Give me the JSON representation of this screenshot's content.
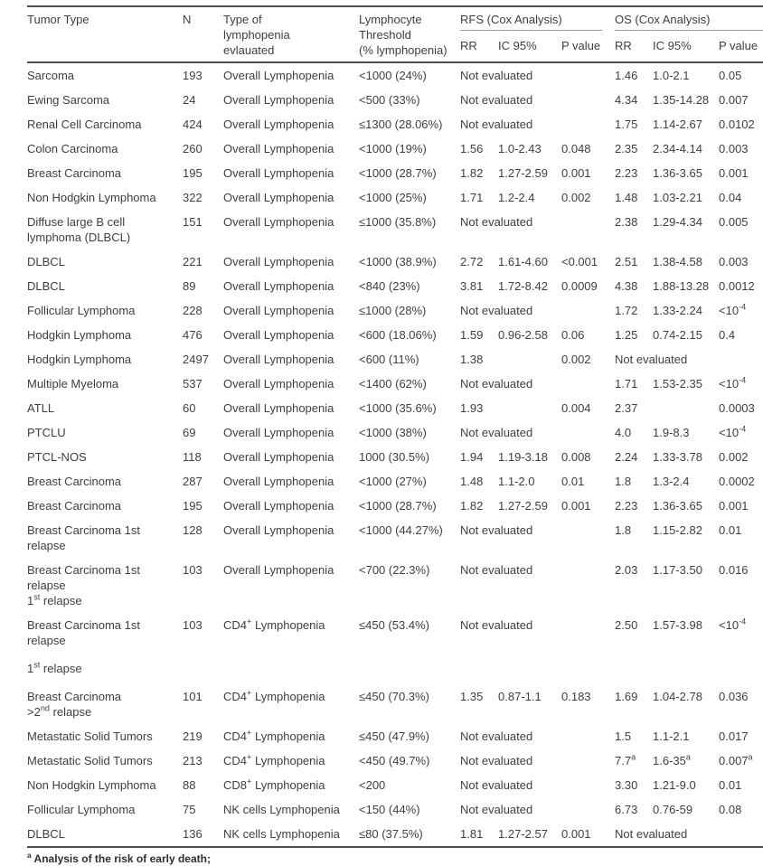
{
  "table": {
    "header": {
      "tumor_type": "Tumor Type",
      "n": "N",
      "type_of_lymphopenia": "Type of\nlymphopenia\nevlauated",
      "threshold": "Lymphocyte\nThreshold\n(% lymphopenia)",
      "rfs_group": "RFS (Cox Analysis)",
      "os_group": "OS (Cox Analysis)",
      "rr": "RR",
      "ic95": "IC 95%",
      "p_value": "P value"
    },
    "rows": [
      {
        "tumor": "Sarcoma",
        "n": "193",
        "type": "Overall Lymphopenia",
        "threshold": "<1000 (24%)",
        "rfs": "Not evaluated",
        "os": [
          "1.46",
          "1.0-2.1",
          "0.05"
        ]
      },
      {
        "tumor": "Ewing Sarcoma",
        "n": "24",
        "type": "Overall Lymphopenia",
        "threshold": "<500 (33%)",
        "rfs": "Not evaluated",
        "os": [
          "4.34",
          "1.35-14.28",
          "0.007"
        ]
      },
      {
        "tumor": "Renal Cell Carcinoma",
        "n": "424",
        "type": "Overall Lymphopenia",
        "threshold": "≤1300 (28.06%)",
        "rfs": "Not evaluated",
        "os": [
          "1.75",
          "1.14-2.67",
          "0.0102"
        ]
      },
      {
        "tumor": "Colon Carcinoma",
        "n": "260",
        "type": "Overall Lymphopenia",
        "threshold": "<1000 (19%)",
        "rfs": [
          "1.56",
          "1.0-2.43",
          "0.048"
        ],
        "os": [
          "2.35",
          "2.34-4.14",
          "0.003"
        ]
      },
      {
        "tumor": "Breast Carcinoma",
        "n": "195",
        "type": "Overall Lymphopenia",
        "threshold": "<1000 (28.7%)",
        "rfs": [
          "1.82",
          "1.27-2.59",
          "0.001"
        ],
        "os": [
          "2.23",
          "1.36-3.65",
          "0.001"
        ]
      },
      {
        "tumor": "Non Hodgkin Lymphoma",
        "n": "322",
        "type": "Overall Lymphopenia",
        "threshold": "<1000 (25%)",
        "rfs": [
          "1.71",
          "1.2-2.4",
          "0.002"
        ],
        "os": [
          "1.48",
          "1.03-2.21",
          "0.04"
        ]
      },
      {
        "tumor": "Diffuse large B cell\nlymphoma (DLBCL)",
        "n": "151",
        "type": "Overall Lymphopenia",
        "threshold": "≤1000 (35.8%)",
        "rfs": "Not evaluated",
        "os": [
          "2.38",
          "1.29-4.34",
          "0.005"
        ]
      },
      {
        "tumor": "DLBCL",
        "n": "221",
        "type": "Overall Lymphopenia",
        "threshold": "<1000 (38.9%)",
        "rfs": [
          "2.72",
          "1.61-4.60",
          "<0.001"
        ],
        "os": [
          "2.51",
          "1.38-4.58",
          "0.003"
        ]
      },
      {
        "tumor": "DLBCL",
        "n": "89",
        "type": "Overall Lymphopenia",
        "threshold": "<840 (23%)",
        "rfs": [
          "3.81",
          "1.72-8.42",
          "0.0009"
        ],
        "os": [
          "4.38",
          "1.88-13.28",
          "0.0012"
        ]
      },
      {
        "tumor": "Follicular Lymphoma",
        "n": "228",
        "type": "Overall Lymphopenia",
        "threshold": "≤1000 (28%)",
        "rfs": "Not evaluated",
        "os": [
          "1.72",
          "1.33-2.24",
          "<10^{-4}"
        ]
      },
      {
        "tumor": "Hodgkin Lymphoma",
        "n": "476",
        "type": "Overall Lymphopenia",
        "threshold": "<600 (18.06%)",
        "rfs": [
          "1.59",
          "0.96-2.58",
          "0.06"
        ],
        "os": [
          "1.25",
          "0.74-2.15",
          "0.4"
        ]
      },
      {
        "tumor": "Hodgkin Lymphoma",
        "n": "2497",
        "type": "Overall Lymphopenia",
        "threshold": "<600 (11%)",
        "rfs": [
          "1.38",
          "",
          "0.002"
        ],
        "os": "Not evaluated"
      },
      {
        "tumor": "Multiple Myeloma",
        "n": "537",
        "type": "Overall Lymphopenia",
        "threshold": "<1400 (62%)",
        "rfs": "Not evaluated",
        "os": [
          "1.71",
          "1.53-2.35",
          "<10^{-4}"
        ]
      },
      {
        "tumor": "ATLL",
        "n": "60",
        "type": "Overall Lymphopenia",
        "threshold": "<1000 (35.6%)",
        "rfs": [
          "1.93",
          "",
          "0.004"
        ],
        "os": [
          "2.37",
          "",
          "0.0003"
        ]
      },
      {
        "tumor": "PTCLU",
        "n": "69",
        "type": "Overall Lymphopenia",
        "threshold": "<1000 (38%)",
        "rfs": "Not evaluated",
        "os": [
          "4.0",
          "1.9-8.3",
          "<10^{-4}"
        ]
      },
      {
        "tumor": "PTCL-NOS",
        "n": "118",
        "type": "Overall Lymphopenia",
        "threshold": "1000 (30.5%)",
        "rfs": [
          "1.94",
          "1.19-3.18",
          "0.008"
        ],
        "os": [
          "2.24",
          "1.33-3.78",
          "0.002"
        ]
      },
      {
        "tumor": "Breast Carcinoma",
        "n": "287",
        "type": "Overall Lymphopenia",
        "threshold": "<1000 (27%)",
        "rfs": [
          "1.48",
          "1.1-2.0",
          "0.01"
        ],
        "os": [
          "1.8",
          "1.3-2.4",
          "0.0002"
        ]
      },
      {
        "tumor": "Breast Carcinoma",
        "n": "195",
        "type": "Overall Lymphopenia",
        "threshold": "<1000 (28.7%)",
        "rfs": [
          "1.82",
          "1.27-2.59",
          "0.001"
        ],
        "os": [
          "2.23",
          "1.36-3.65",
          "0.001"
        ]
      },
      {
        "tumor": "Breast Carcinoma 1st relapse",
        "n": "128",
        "type": "Overall Lymphopenia",
        "threshold": "<1000 (44.27%)",
        "rfs": "Not evaluated",
        "os": [
          "1.8",
          "1.15-2.82",
          "0.01"
        ]
      },
      {
        "tumor": "Breast Carcinoma 1st relapse\n1^{st} relapse",
        "n": "103",
        "type": "Overall Lymphopenia",
        "threshold": "<700 (22.3%)",
        "rfs": "Not evaluated",
        "os": [
          "2.03",
          "1.17-3.50",
          "0.016"
        ]
      },
      {
        "tumor": "Breast Carcinoma 1st relapse",
        "n": "103",
        "type": "CD4^{+} Lymphopenia",
        "threshold": "≤450 (53.4%)",
        "rfs": "Not evaluated",
        "os": [
          "2.50",
          "1.57-3.98",
          "<10^{-4}"
        ]
      },
      {
        "tumor": "1^{st} relapse",
        "n": "",
        "type": "",
        "threshold": "",
        "rfs": "",
        "os": "",
        "spacer": true
      },
      {
        "tumor": "Breast Carcinoma\n>2^{nd} relapse",
        "n": "101",
        "type": "CD4^{+} Lymphopenia",
        "threshold": "≤450 (70.3%)",
        "rfs": [
          "1.35",
          "0.87-1.1",
          "0.183"
        ],
        "os": [
          "1.69",
          "1.04-2.78",
          "0.036"
        ]
      },
      {
        "tumor": "Metastatic Solid Tumors",
        "n": "219",
        "type": "CD4^{+} Lymphopenia",
        "threshold": "≤450 (47.9%)",
        "rfs": "Not evaluated",
        "os": [
          "1.5",
          "1.1-2.1",
          "0.017"
        ]
      },
      {
        "tumor": "Metastatic Solid Tumors",
        "n": "213",
        "type": "CD4^{+} Lymphopenia",
        "threshold": "<450 (49.7%)",
        "rfs": "Not evaluated",
        "os": [
          "7.7^{a}",
          "1.6-35^{a}",
          "0.007^{a}"
        ]
      },
      {
        "tumor": "Non Hodgkin Lymphoma",
        "n": "88",
        "type": "CD8^{+} Lymphopenia",
        "threshold": "<200",
        "rfs": "Not evaluated",
        "os": [
          "3.30",
          "1.21-9.0",
          "0.01"
        ]
      },
      {
        "tumor": "Follicular Lymphoma",
        "n": "75",
        "type": "NK cells Lymphopenia",
        "threshold": "<150 (44%)",
        "rfs": "Not evaluated",
        "os": [
          "6.73",
          "0.76-59",
          "0.08"
        ]
      },
      {
        "tumor": "DLBCL",
        "n": "136",
        "type": "NK cells Lymphopenia",
        "threshold": "≤80 (37.5%)",
        "rfs": [
          "1.81",
          "1.27-2.57",
          "0.001"
        ],
        "os": "Not evaluated"
      }
    ],
    "footnote": "^{a} Analysis of the risk of early death;"
  }
}
